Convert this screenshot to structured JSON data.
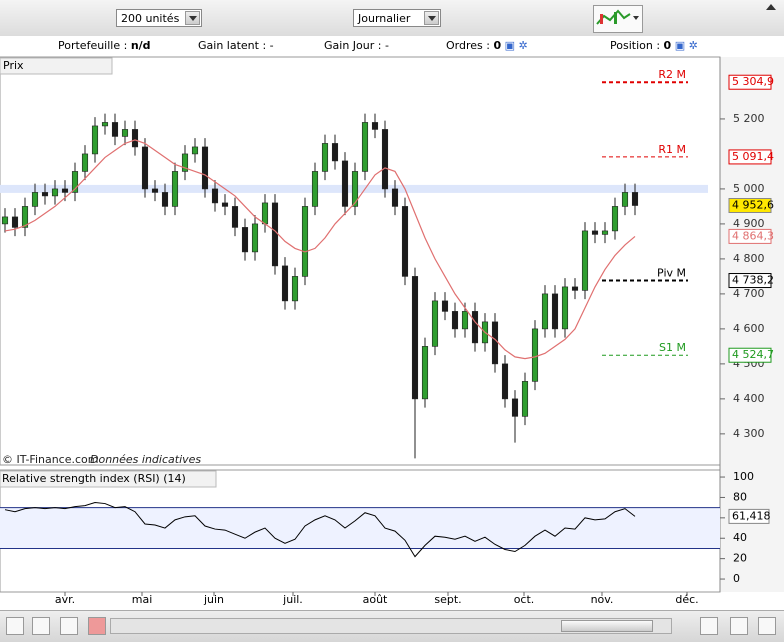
{
  "toolbar": {
    "quantity": "200 unités",
    "period": "Journalier"
  },
  "info_bar": {
    "portfolio_label": "Portefeuille :",
    "portfolio_value": "n/d",
    "latent_label": "Gain latent :",
    "latent_value": "-",
    "day_label": "Gain Jour :",
    "day_value": "-",
    "orders_label": "Ordres :",
    "orders_value": "0",
    "position_label": "Position :",
    "position_value": "0"
  },
  "chart_data": [
    {
      "type": "candlestick",
      "title": "Prix",
      "source": "© IT-Finance.com",
      "note": "Données indicatives",
      "x": [
        0,
        1,
        2,
        3,
        4,
        5,
        6,
        7,
        8,
        9,
        10,
        11,
        12,
        13,
        14,
        15,
        16,
        17,
        18,
        19,
        20,
        21,
        22,
        23,
        24,
        25,
        26,
        27,
        28,
        29,
        30,
        31,
        32,
        33,
        34,
        35,
        36,
        37,
        38,
        39,
        40,
        41,
        42,
        43,
        44,
        45,
        46,
        47,
        48,
        49,
        50,
        51,
        52,
        53,
        54,
        55,
        56,
        57,
        58,
        59,
        60,
        61,
        62,
        63
      ],
      "open": [
        4900,
        4920,
        4890,
        4950,
        4990,
        4980,
        5000,
        4990,
        5050,
        5100,
        5180,
        5190,
        5150,
        5170,
        5120,
        5000,
        4990,
        4950,
        5050,
        5100,
        5120,
        5000,
        4960,
        4950,
        4890,
        4820,
        4900,
        4960,
        4780,
        4680,
        4750,
        4950,
        5050,
        5130,
        5080,
        4950,
        5050,
        5190,
        5170,
        5000,
        4950,
        4750,
        4400,
        4550,
        4680,
        4650,
        4600,
        4650,
        4560,
        4620,
        4500,
        4400,
        4350,
        4450,
        4600,
        4700,
        4600,
        4720,
        4710,
        4880,
        4870,
        4880,
        4950,
        4990
      ],
      "high": [
        4945,
        4945,
        4975,
        5015,
        5015,
        5025,
        5025,
        5075,
        5125,
        5205,
        5215,
        5215,
        5195,
        5195,
        5145,
        5025,
        5015,
        5075,
        5125,
        5145,
        5145,
        5025,
        4985,
        4975,
        4915,
        4925,
        4985,
        4985,
        4805,
        4775,
        4975,
        5075,
        5155,
        5155,
        5105,
        5075,
        5215,
        5215,
        5195,
        5025,
        4975,
        4775,
        4575,
        4705,
        4705,
        4675,
        4675,
        4675,
        4645,
        4645,
        4525,
        4425,
        4475,
        4625,
        4725,
        4725,
        4745,
        4745,
        4905,
        4905,
        4905,
        4975,
        5015,
        5015
      ],
      "low": [
        4875,
        4865,
        4865,
        4925,
        4955,
        4955,
        4965,
        4965,
        5025,
        5075,
        5155,
        5125,
        5125,
        5095,
        4975,
        4965,
        4925,
        4925,
        5025,
        5075,
        4975,
        4935,
        4925,
        4865,
        4795,
        4795,
        4875,
        4755,
        4655,
        4655,
        4725,
        4925,
        5025,
        5055,
        4925,
        4925,
        5025,
        5145,
        4975,
        4925,
        4725,
        4230,
        4375,
        4525,
        4625,
        4575,
        4575,
        4535,
        4535,
        4475,
        4375,
        4275,
        4325,
        4425,
        4575,
        4575,
        4575,
        4685,
        4685,
        4845,
        4845,
        4855,
        4925,
        4925
      ],
      "close": [
        4920,
        4890,
        4950,
        4990,
        4980,
        5000,
        4990,
        5050,
        5100,
        5180,
        5190,
        5150,
        5170,
        5120,
        5000,
        4990,
        4950,
        5050,
        5100,
        5120,
        5000,
        4960,
        4950,
        4890,
        4820,
        4900,
        4960,
        4780,
        4680,
        4750,
        4950,
        5050,
        5130,
        5080,
        4950,
        5050,
        5190,
        5170,
        5000,
        4950,
        4750,
        4400,
        4550,
        4680,
        4650,
        4600,
        4650,
        4560,
        4620,
        4500,
        4400,
        4350,
        4450,
        4600,
        4700,
        4600,
        4720,
        4710,
        4880,
        4870,
        4880,
        4950,
        4990,
        4952.6
      ],
      "close_label": "4 952,6",
      "up_color": "#2f9e2f",
      "down_color": "#1c1c1c",
      "ma": {
        "color": "#e07070",
        "values": [
          4880,
          4885,
          4895,
          4910,
          4930,
          4950,
          4975,
          5000,
          5030,
          5060,
          5090,
          5110,
          5130,
          5140,
          5130,
          5110,
          5090,
          5070,
          5060,
          5050,
          5040,
          5020,
          5000,
          4980,
          4950,
          4920,
          4900,
          4880,
          4850,
          4830,
          4820,
          4830,
          4860,
          4900,
          4930,
          4960,
          5000,
          5040,
          5060,
          5050,
          5000,
          4930,
          4860,
          4800,
          4750,
          4700,
          4660,
          4620,
          4590,
          4570,
          4540,
          4520,
          4515,
          4520,
          4530,
          4550,
          4570,
          4600,
          4660,
          4720,
          4770,
          4810,
          4840,
          4864.3
        ],
        "last_label": "4 864,3"
      },
      "levels": [
        {
          "name": "R2 M",
          "value": 5304.9,
          "label": "5 304,9",
          "color": "#e00000",
          "width": 2
        },
        {
          "name": "R1 M",
          "value": 5091.4,
          "label": "5 091,4",
          "color": "#e00000",
          "width": 1
        },
        {
          "name": "Piv M",
          "value": 4738.2,
          "label": "4 738,2",
          "color": "#000000",
          "width": 2
        },
        {
          "name": "S1 M",
          "value": 4524.7,
          "label": "4 524,7",
          "color": "#1f9a1f",
          "width": 1
        }
      ],
      "band": 5000,
      "xlim": [
        -0.5,
        71.5
      ],
      "xticks": [
        {
          "value": 6,
          "label": "avr."
        },
        {
          "value": 13.7,
          "label": "mai"
        },
        {
          "value": 20.9,
          "label": "juin"
        },
        {
          "value": 28.8,
          "label": "juil."
        },
        {
          "value": 37,
          "label": "août"
        },
        {
          "value": 44.3,
          "label": "sept."
        },
        {
          "value": 51.9,
          "label": "oct."
        },
        {
          "value": 59.7,
          "label": "nov."
        },
        {
          "value": 68.2,
          "label": "déc."
        }
      ],
      "ylim": [
        4211,
        5377
      ],
      "yticks": [
        {
          "value": 4300,
          "label": "4 300"
        },
        {
          "value": 4400,
          "label": "4 400"
        },
        {
          "value": 4500,
          "label": "4 500"
        },
        {
          "value": 4600,
          "label": "4 600"
        },
        {
          "value": 4700,
          "label": "4 700"
        },
        {
          "value": 4800,
          "label": "4 800"
        },
        {
          "value": 4900,
          "label": "4 900"
        },
        {
          "value": 5000,
          "label": "5 000"
        },
        {
          "value": 5200,
          "label": "5 200"
        }
      ]
    },
    {
      "type": "line",
      "title": "Relative strength index (RSI) (14)",
      "x": [
        0,
        1,
        2,
        3,
        4,
        5,
        6,
        7,
        8,
        9,
        10,
        11,
        12,
        13,
        14,
        15,
        16,
        17,
        18,
        19,
        20,
        21,
        22,
        23,
        24,
        25,
        26,
        27,
        28,
        29,
        30,
        31,
        32,
        33,
        34,
        35,
        36,
        37,
        38,
        39,
        40,
        41,
        42,
        43,
        44,
        45,
        46,
        47,
        48,
        49,
        50,
        51,
        52,
        53,
        54,
        55,
        56,
        57,
        58,
        59,
        60,
        61,
        62,
        63
      ],
      "values": [
        68,
        66,
        69,
        70,
        69,
        70,
        69,
        71,
        72,
        75,
        74,
        70,
        71,
        66,
        54,
        53,
        50,
        58,
        61,
        62,
        52,
        49,
        48,
        44,
        40,
        46,
        50,
        40,
        35,
        39,
        52,
        58,
        62,
        58,
        50,
        57,
        65,
        62,
        50,
        47,
        38,
        22,
        33,
        42,
        41,
        39,
        42,
        37,
        41,
        34,
        29,
        27,
        33,
        42,
        48,
        42,
        50,
        49,
        60,
        58,
        59,
        66,
        69,
        61.418
      ],
      "last_label": "61,418",
      "color": "#000000",
      "levels": [
        30,
        70
      ],
      "xlim": [
        -0.5,
        71.5
      ],
      "ylim": [
        -12.7,
        106.9
      ],
      "yticks": [
        0,
        20,
        40,
        60,
        80,
        100
      ]
    }
  ]
}
